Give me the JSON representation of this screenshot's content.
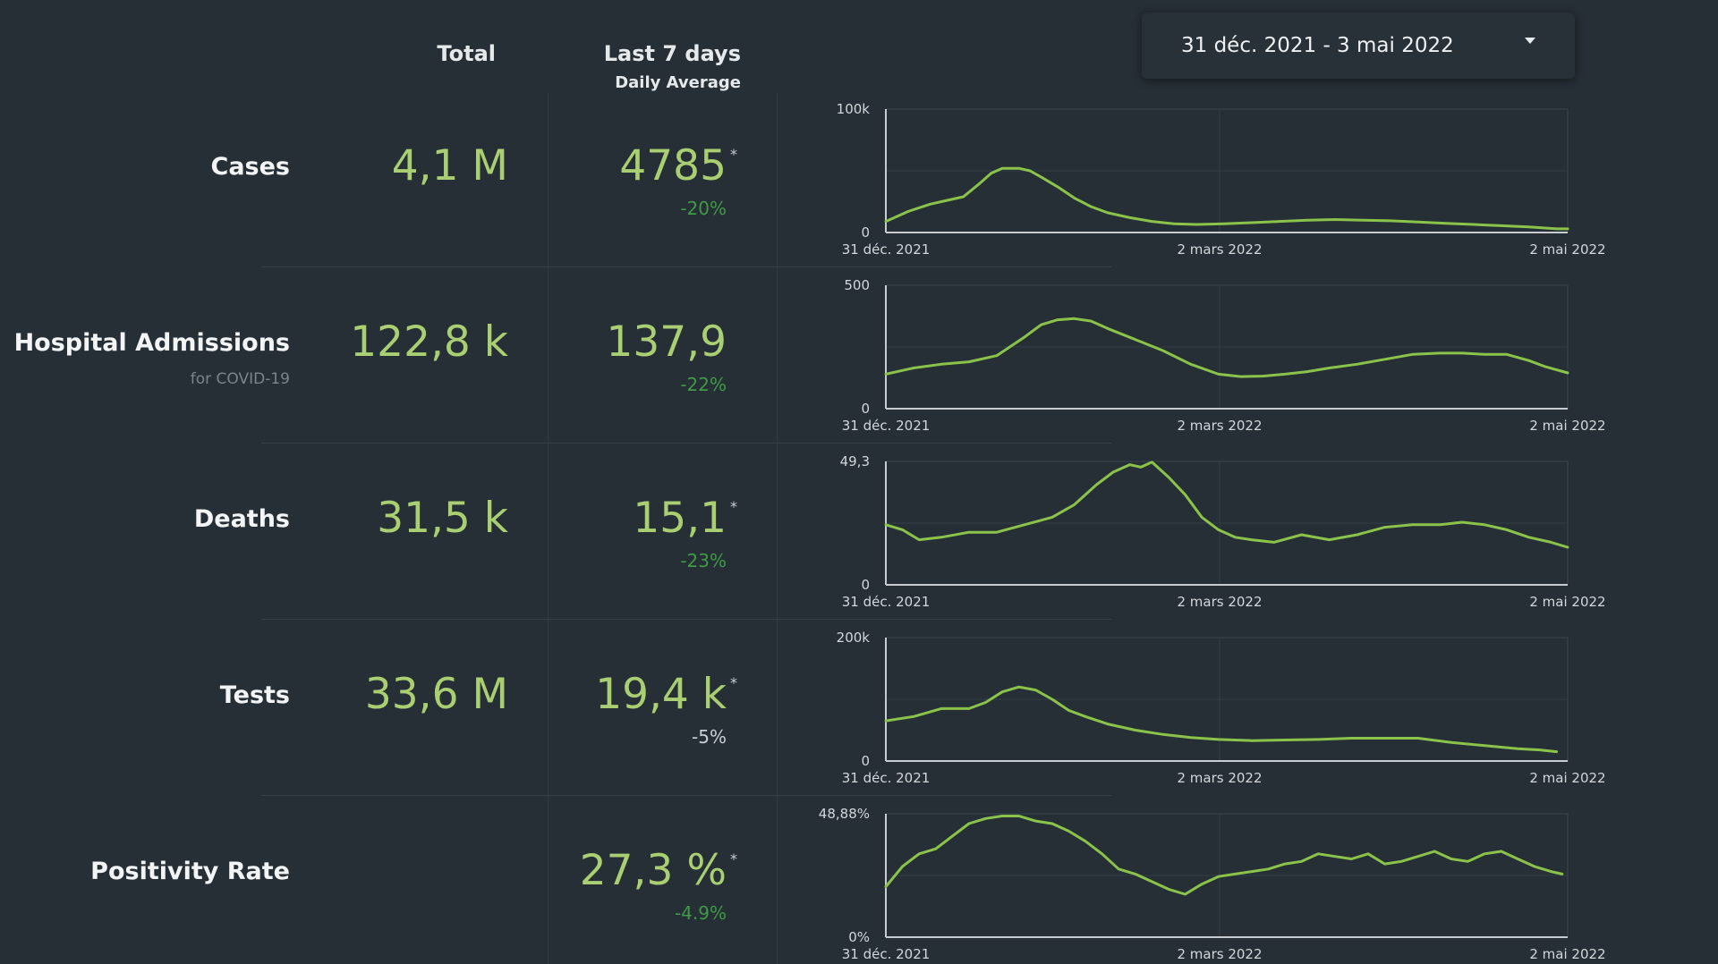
{
  "header": {
    "total_label": "Total",
    "last7_label": "Last 7 days",
    "last7_sub": "Daily Average"
  },
  "date_range": {
    "label": "31 déc. 2021 - 3 mai 2022"
  },
  "colors": {
    "value": "#a9cf72",
    "line": "#8bc34a",
    "negative_change": "#3f9a45",
    "neutral_change": "#c9d0d4",
    "background": "#262f36"
  },
  "rows": [
    {
      "label": "Cases",
      "sublabel": "",
      "total": "4,1 M",
      "avg": "4785",
      "change": "-20%",
      "change_tone": "green",
      "star": "*"
    },
    {
      "label": "Hospital Admissions",
      "sublabel": "for COVID-19",
      "total": "122,8 k",
      "avg": "137,9",
      "change": "-22%",
      "change_tone": "green",
      "star": ""
    },
    {
      "label": "Deaths",
      "sublabel": "",
      "total": "31,5 k",
      "avg": "15,1",
      "change": "-23%",
      "change_tone": "green",
      "star": "*"
    },
    {
      "label": "Tests",
      "sublabel": "",
      "total": "33,6 M",
      "avg": "19,4 k",
      "change": "-5%",
      "change_tone": "neutral",
      "star": "*"
    },
    {
      "label": "Positivity Rate",
      "sublabel": "",
      "total": "",
      "avg": "27,3 %",
      "change": "-4.9%",
      "change_tone": "green",
      "star": "*"
    }
  ],
  "chart_data": [
    {
      "type": "line",
      "title": "",
      "xlabel": "",
      "ylabel": "",
      "ylim": [
        0,
        100000
      ],
      "y_ticks": [
        "100k",
        "0"
      ],
      "x_ticks": [
        "31 déc. 2021",
        "2 mars 2022",
        "2 mai 2022"
      ],
      "x": [
        0,
        4,
        8,
        11,
        14,
        17,
        19,
        21,
        24,
        26,
        28,
        31,
        34,
        37,
        40,
        44,
        48,
        52,
        56,
        61,
        66,
        71,
        76,
        81,
        86,
        91,
        96,
        101,
        106,
        111,
        116,
        121,
        123
      ],
      "y": [
        9000,
        17000,
        23000,
        26000,
        29000,
        40000,
        48000,
        52000,
        52000,
        50000,
        45000,
        37000,
        28000,
        21000,
        16000,
        12000,
        9000,
        7000,
        6500,
        7000,
        8000,
        9000,
        10000,
        10500,
        10000,
        9500,
        8500,
        7500,
        6500,
        5500,
        4500,
        3000,
        3000
      ],
      "grid": true
    },
    {
      "type": "line",
      "title": "",
      "xlabel": "",
      "ylabel": "",
      "ylim": [
        0,
        500
      ],
      "y_ticks": [
        "500",
        "0"
      ],
      "x_ticks": [
        "31 déc. 2021",
        "2 mars 2022",
        "2 mai 2022"
      ],
      "x": [
        0,
        5,
        10,
        15,
        20,
        25,
        28,
        31,
        34,
        37,
        40,
        45,
        50,
        55,
        60,
        64,
        68,
        72,
        76,
        80,
        85,
        90,
        95,
        100,
        104,
        108,
        112,
        116,
        119,
        123
      ],
      "y": [
        140,
        165,
        180,
        190,
        215,
        290,
        340,
        360,
        365,
        355,
        325,
        280,
        235,
        180,
        140,
        130,
        132,
        140,
        150,
        165,
        180,
        200,
        220,
        225,
        225,
        220,
        220,
        195,
        170,
        145
      ],
      "grid": true
    },
    {
      "type": "line",
      "title": "",
      "xlabel": "",
      "ylabel": "",
      "ylim": [
        0,
        49.3
      ],
      "y_ticks": [
        "49,3",
        "0"
      ],
      "x_ticks": [
        "31 déc. 2021",
        "2 mars 2022",
        "2 mai 2022"
      ],
      "x": [
        0,
        3,
        6,
        10,
        15,
        20,
        25,
        30,
        34,
        38,
        41,
        44,
        46,
        48,
        51,
        54,
        57,
        60,
        63,
        66,
        70,
        75,
        80,
        85,
        90,
        95,
        100,
        104,
        108,
        112,
        116,
        120,
        123
      ],
      "y": [
        24,
        22,
        18,
        19,
        21,
        21,
        24,
        27,
        32,
        40,
        45,
        48,
        47,
        49,
        43,
        36,
        27,
        22,
        19,
        18,
        17,
        20,
        18,
        20,
        23,
        24,
        24,
        25,
        24,
        22,
        19,
        17,
        15
      ],
      "grid": true
    },
    {
      "type": "line",
      "title": "",
      "xlabel": "",
      "ylabel": "",
      "ylim": [
        0,
        200000
      ],
      "y_ticks": [
        "200k",
        "0"
      ],
      "x_ticks": [
        "31 déc. 2021",
        "2 mars 2022",
        "2 mai 2022"
      ],
      "x": [
        0,
        5,
        10,
        15,
        18,
        21,
        24,
        27,
        30,
        33,
        36,
        40,
        45,
        50,
        55,
        60,
        66,
        72,
        78,
        84,
        90,
        96,
        102,
        108,
        114,
        118,
        121
      ],
      "y": [
        65000,
        72000,
        85000,
        85000,
        95000,
        112000,
        120000,
        115000,
        100000,
        82000,
        72000,
        60000,
        50000,
        43000,
        38000,
        35000,
        33000,
        34000,
        35000,
        37000,
        37000,
        37000,
        30000,
        25000,
        20000,
        18000,
        15000
      ],
      "grid": true
    },
    {
      "type": "line",
      "title": "",
      "xlabel": "",
      "ylabel": "",
      "ylim": [
        0,
        48.88
      ],
      "y_ticks": [
        "48,88%",
        "0%"
      ],
      "x_ticks": [
        "31 déc. 2021",
        "2 mars 2022",
        "2 mai 2022"
      ],
      "x": [
        0,
        3,
        6,
        9,
        12,
        15,
        18,
        21,
        24,
        27,
        30,
        33,
        36,
        39,
        42,
        45,
        48,
        51,
        54,
        57,
        60,
        63,
        66,
        69,
        72,
        75,
        78,
        81,
        84,
        87,
        90,
        93,
        96,
        99,
        102,
        105,
        108,
        111,
        114,
        117,
        120,
        122
      ],
      "y": [
        20,
        28,
        33,
        35,
        40,
        45,
        47,
        48,
        48,
        46,
        45,
        42,
        38,
        33,
        27,
        25,
        22,
        19,
        17,
        21,
        24,
        25,
        26,
        27,
        29,
        30,
        33,
        32,
        31,
        33,
        29,
        30,
        32,
        34,
        31,
        30,
        33,
        34,
        31,
        28,
        26,
        25
      ],
      "grid": true
    }
  ]
}
